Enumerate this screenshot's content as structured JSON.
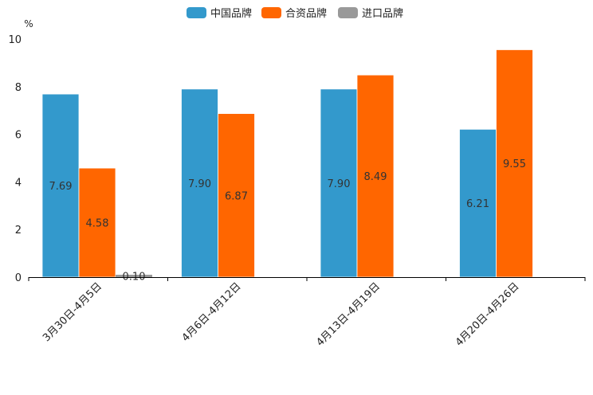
{
  "chart_data": {
    "type": "bar",
    "unit": "%",
    "categories": [
      "3月30日-4月5日",
      "4月6日-4月12日",
      "4月13日-4月19日",
      "4月20日-4月26日"
    ],
    "series": [
      {
        "name": "中国品牌",
        "color": "#3399CC",
        "values": [
          7.69,
          7.9,
          7.9,
          6.21
        ],
        "labels": [
          "7.69",
          "7.90",
          "7.90",
          "6.21"
        ]
      },
      {
        "name": "合资品牌",
        "color": "#FF6600",
        "values": [
          4.58,
          6.87,
          8.49,
          9.55
        ],
        "labels": [
          "4.58",
          "6.87",
          "8.49",
          "9.55"
        ]
      },
      {
        "name": "进口品牌",
        "color": "#999999",
        "values": [
          0.1,
          null,
          null,
          null
        ],
        "labels": [
          "0.10",
          null,
          null,
          null
        ]
      }
    ],
    "ylim": [
      0,
      10
    ],
    "yticks": [
      "0",
      "2",
      "4",
      "6",
      "8",
      "10"
    ],
    "legend_position": "top-center",
    "grid": false
  }
}
